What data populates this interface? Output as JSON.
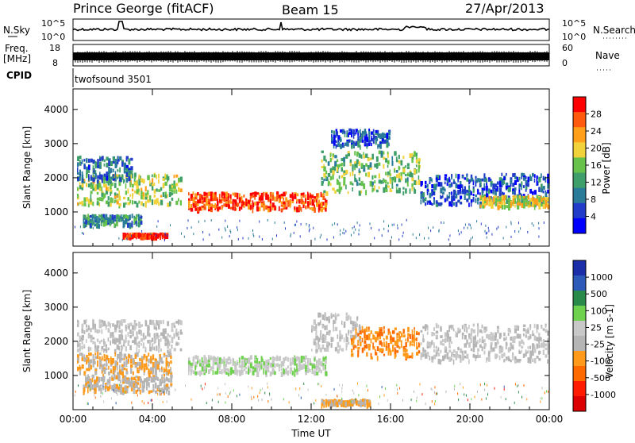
{
  "header": {
    "station": "Prince George (fitACF)",
    "beam": "Beam 15",
    "date": "27/Apr/2013"
  },
  "top_panels": {
    "nsky": {
      "label": "N.Sky",
      "tick_top": "10^5",
      "tick_bottom": "10^0"
    },
    "nsearch": {
      "label": "N.Search",
      "tick_top": "10^5",
      "tick_bottom": "10^0"
    },
    "freq": {
      "label_line1": "Freq.",
      "label_line2": "[MHz]",
      "tick_top": "18",
      "tick_bottom": "8"
    },
    "nave": {
      "label": "Nave",
      "tick_top": "60",
      "tick_bottom": "0"
    },
    "cpid": {
      "label": "CPID",
      "value": "twofsound 3501"
    }
  },
  "colors": {
    "power_scale": [
      "#0000ff",
      "#203cc8",
      "#2a7a9a",
      "#3f9f6a",
      "#66c24a",
      "#f2d23a",
      "#ff9f1a",
      "#ff5a0d",
      "#ff0000"
    ],
    "velocity_scale": [
      "#1a2ea8",
      "#2b5ab8",
      "#2a8a4a",
      "#6fd24f",
      "#c8c8c8",
      "#b5b5b5",
      "#ff9a1a",
      "#ff6a00",
      "#ff1a00",
      "#dd0000"
    ]
  },
  "chart_data": [
    {
      "type": "heatmap",
      "name": "power-panel",
      "ylabel": "Slant Range [km]",
      "xlabel": "",
      "yticks": [
        "1000",
        "2000",
        "3000",
        "4000"
      ],
      "ylim": [
        0,
        4600
      ],
      "xlim": [
        0,
        24
      ],
      "colorbar": {
        "label": "Power [dB]",
        "ticks": [
          "4",
          "8",
          "12",
          "16",
          "20",
          "24",
          "28"
        ],
        "range": [
          0,
          30
        ]
      },
      "bands": [
        {
          "t0": 0.2,
          "t1": 5.5,
          "r_center": 1700,
          "r_width": 900,
          "value": 16
        },
        {
          "t0": 0.2,
          "t1": 3.0,
          "r_center": 2300,
          "r_width": 700,
          "value": 8
        },
        {
          "t0": 0.5,
          "t1": 3.5,
          "r_center": 800,
          "r_width": 300,
          "value": 10
        },
        {
          "t0": 5.8,
          "t1": 12.8,
          "r_center": 1350,
          "r_width": 500,
          "value": 26
        },
        {
          "t0": 12.5,
          "t1": 17.5,
          "r_center": 2200,
          "r_width": 1200,
          "value": 14
        },
        {
          "t0": 13.0,
          "t1": 16.0,
          "r_center": 3200,
          "r_width": 500,
          "value": 6
        },
        {
          "t0": 17.5,
          "t1": 24,
          "r_center": 1700,
          "r_width": 900,
          "value": 6
        },
        {
          "t0": 20.5,
          "t1": 24,
          "r_center": 1350,
          "r_width": 300,
          "value": 18
        },
        {
          "t0": 2.5,
          "t1": 4.8,
          "r_center": 350,
          "r_width": 100,
          "value": 28
        }
      ]
    },
    {
      "type": "heatmap",
      "name": "velocity-panel",
      "ylabel": "Slant Range [km]",
      "xlabel": "Time UT",
      "yticks": [
        "1000",
        "2000",
        "3000",
        "4000"
      ],
      "ylim": [
        0,
        4600
      ],
      "xlim": [
        0,
        24
      ],
      "xticks": [
        "00:00",
        "04:00",
        "08:00",
        "12:00",
        "16:00",
        "20:00",
        "00:00"
      ],
      "colorbar": {
        "label": "Velocity [m s-1]",
        "ticks": [
          "1000",
          "500",
          "100",
          "25",
          "-25",
          "-100",
          "-500",
          "-1000"
        ],
        "range": [
          -1200,
          1200
        ]
      },
      "bands": [
        {
          "t0": 0.2,
          "t1": 5.5,
          "r_center": 2200,
          "r_width": 900,
          "value": 0
        },
        {
          "t0": 0.2,
          "t1": 5.0,
          "r_center": 1400,
          "r_width": 600,
          "value": -250
        },
        {
          "t0": 0.5,
          "t1": 5.0,
          "r_center": 800,
          "r_width": 500,
          "value": -180
        },
        {
          "t0": 5.8,
          "t1": 12.8,
          "r_center": 1350,
          "r_width": 500,
          "value": 180
        },
        {
          "t0": 12.0,
          "t1": 14.5,
          "r_center": 2300,
          "r_width": 1100,
          "value": 0
        },
        {
          "t0": 14.0,
          "t1": 17.5,
          "r_center": 2000,
          "r_width": 900,
          "value": -450
        },
        {
          "t0": 17.5,
          "t1": 24,
          "r_center": 2000,
          "r_width": 1100,
          "value": 0
        },
        {
          "t0": 12.5,
          "t1": 15.0,
          "r_center": 250,
          "r_width": 150,
          "value": -300
        }
      ]
    }
  ]
}
